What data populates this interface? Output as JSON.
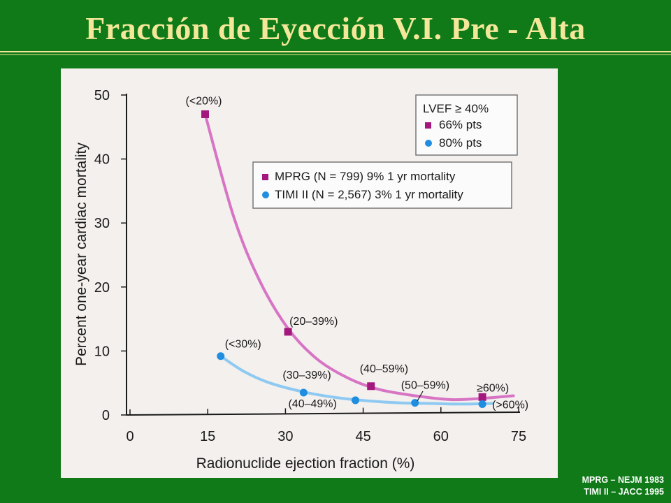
{
  "slide": {
    "title": "Fracción de Eyección V.I. Pre - Alta",
    "citations": [
      "MPRG – NEJM 1983",
      "TIMI II – JACC 1995"
    ]
  },
  "colors": {
    "background": "#0f7a17",
    "title": "#f4e79a",
    "mprg": "#a3187d",
    "mprg_curve": "#d774c4",
    "timi": "#1f8de0",
    "timi_curve": "#8ec9f2"
  },
  "chart_data": {
    "type": "scatter",
    "xlabel": "Radionuclide ejection fraction (%)",
    "ylabel": "Percent one-year cardiac mortality",
    "xlim": [
      0,
      75
    ],
    "ylim": [
      0,
      50
    ],
    "xticks": [
      "0",
      "15",
      "30",
      "45",
      "60",
      "75"
    ],
    "yticks": [
      "0",
      "10",
      "20",
      "30",
      "40",
      "50"
    ],
    "grid": false,
    "legend_top": {
      "title": "LVEF ≥ 40%",
      "items": [
        {
          "marker": "square",
          "color": "#a3187d",
          "label": "66% pts"
        },
        {
          "marker": "circle",
          "color": "#1f8de0",
          "label": "80% pts"
        }
      ]
    },
    "legend_main": {
      "items": [
        {
          "marker": "square",
          "color": "#a3187d",
          "label": "MPRG (N = 799) 9% 1 yr mortality"
        },
        {
          "marker": "circle",
          "color": "#1f8de0",
          "label": "TIMI II (N = 2,567) 3% 1 yr mortality"
        }
      ]
    },
    "series": [
      {
        "name": "MPRG (N = 799) 9% 1 yr mortality",
        "marker": "square",
        "points": [
          {
            "x": 14.5,
            "y": 47.0,
            "label": "(<20%)"
          },
          {
            "x": 30.5,
            "y": 13.0,
            "label": "(20–39%)"
          },
          {
            "x": 46.5,
            "y": 4.5,
            "label": "(40–59%)"
          },
          {
            "x": 68.0,
            "y": 2.8,
            "label": "≥60%)"
          }
        ],
        "curve": [
          [
            14.5,
            47.0
          ],
          [
            20,
            31
          ],
          [
            25,
            21
          ],
          [
            30.5,
            13.5
          ],
          [
            36,
            8.8
          ],
          [
            42,
            5.8
          ],
          [
            48,
            4.0
          ],
          [
            55,
            3.0
          ],
          [
            62,
            2.4
          ],
          [
            68,
            2.6
          ],
          [
            74,
            3.0
          ]
        ]
      },
      {
        "name": "TIMI II (N = 2,567) 3% 1 yr mortality",
        "marker": "circle",
        "points": [
          {
            "x": 17.5,
            "y": 9.2,
            "label": "(<30%)"
          },
          {
            "x": 33.5,
            "y": 3.5,
            "label": "(30–39%)"
          },
          {
            "x": 43.5,
            "y": 2.3,
            "label": "(40–49%)"
          },
          {
            "x": 55.0,
            "y": 1.9,
            "label": "(50–59%)"
          },
          {
            "x": 68.0,
            "y": 1.7,
            "label": "(>60%)"
          }
        ],
        "curve": [
          [
            17.5,
            9.2
          ],
          [
            22,
            6.8
          ],
          [
            27,
            5.0
          ],
          [
            33.5,
            3.6
          ],
          [
            40,
            2.7
          ],
          [
            46,
            2.2
          ],
          [
            52,
            1.9
          ],
          [
            58,
            1.8
          ],
          [
            64,
            1.7
          ],
          [
            70,
            1.8
          ]
        ]
      }
    ]
  }
}
